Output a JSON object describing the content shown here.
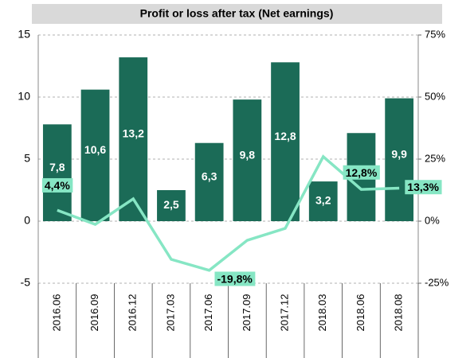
{
  "chart_data": {
    "type": "bar_line",
    "title": "Profit or loss after tax (Net earnings)",
    "categories": [
      "2016.06",
      "2016.09",
      "2016.12",
      "2017.03",
      "2017.06",
      "2017.09",
      "2017.12",
      "2018.03",
      "2018.06",
      "2018.08"
    ],
    "series": [
      {
        "type": "bar",
        "color": "#1b6b57",
        "values": [
          7.8,
          10.6,
          13.2,
          2.5,
          6.3,
          9.8,
          12.8,
          3.2,
          7.1,
          9.9
        ],
        "value_labels": [
          "7,8",
          "10,6",
          "13,2",
          "2,5",
          "6,3",
          "9,8",
          "12,8",
          "3,2",
          "7,1",
          "9,9"
        ]
      },
      {
        "type": "line",
        "axis": "y2",
        "color": "#86e6c4",
        "values": [
          4.4,
          -1.3,
          9,
          -15.4,
          -19.8,
          -7.7,
          -2.9,
          26,
          12.8,
          13.3
        ],
        "value_labels": [
          "4,4%",
          null,
          null,
          null,
          "-19,8%",
          null,
          null,
          null,
          "12,8%",
          "13,3%"
        ]
      }
    ],
    "ylim": [
      -5,
      15
    ],
    "yticks": [
      -5,
      0,
      5,
      10,
      15
    ],
    "y2lim": [
      -25,
      75
    ],
    "y2ticks": [
      {
        "value": -25,
        "label": "-25%"
      },
      {
        "value": 0,
        "label": "0%"
      },
      {
        "value": 25,
        "label": "25%"
      },
      {
        "value": 50,
        "label": "50%"
      },
      {
        "value": 75,
        "label": "75%"
      }
    ],
    "grid": true
  }
}
